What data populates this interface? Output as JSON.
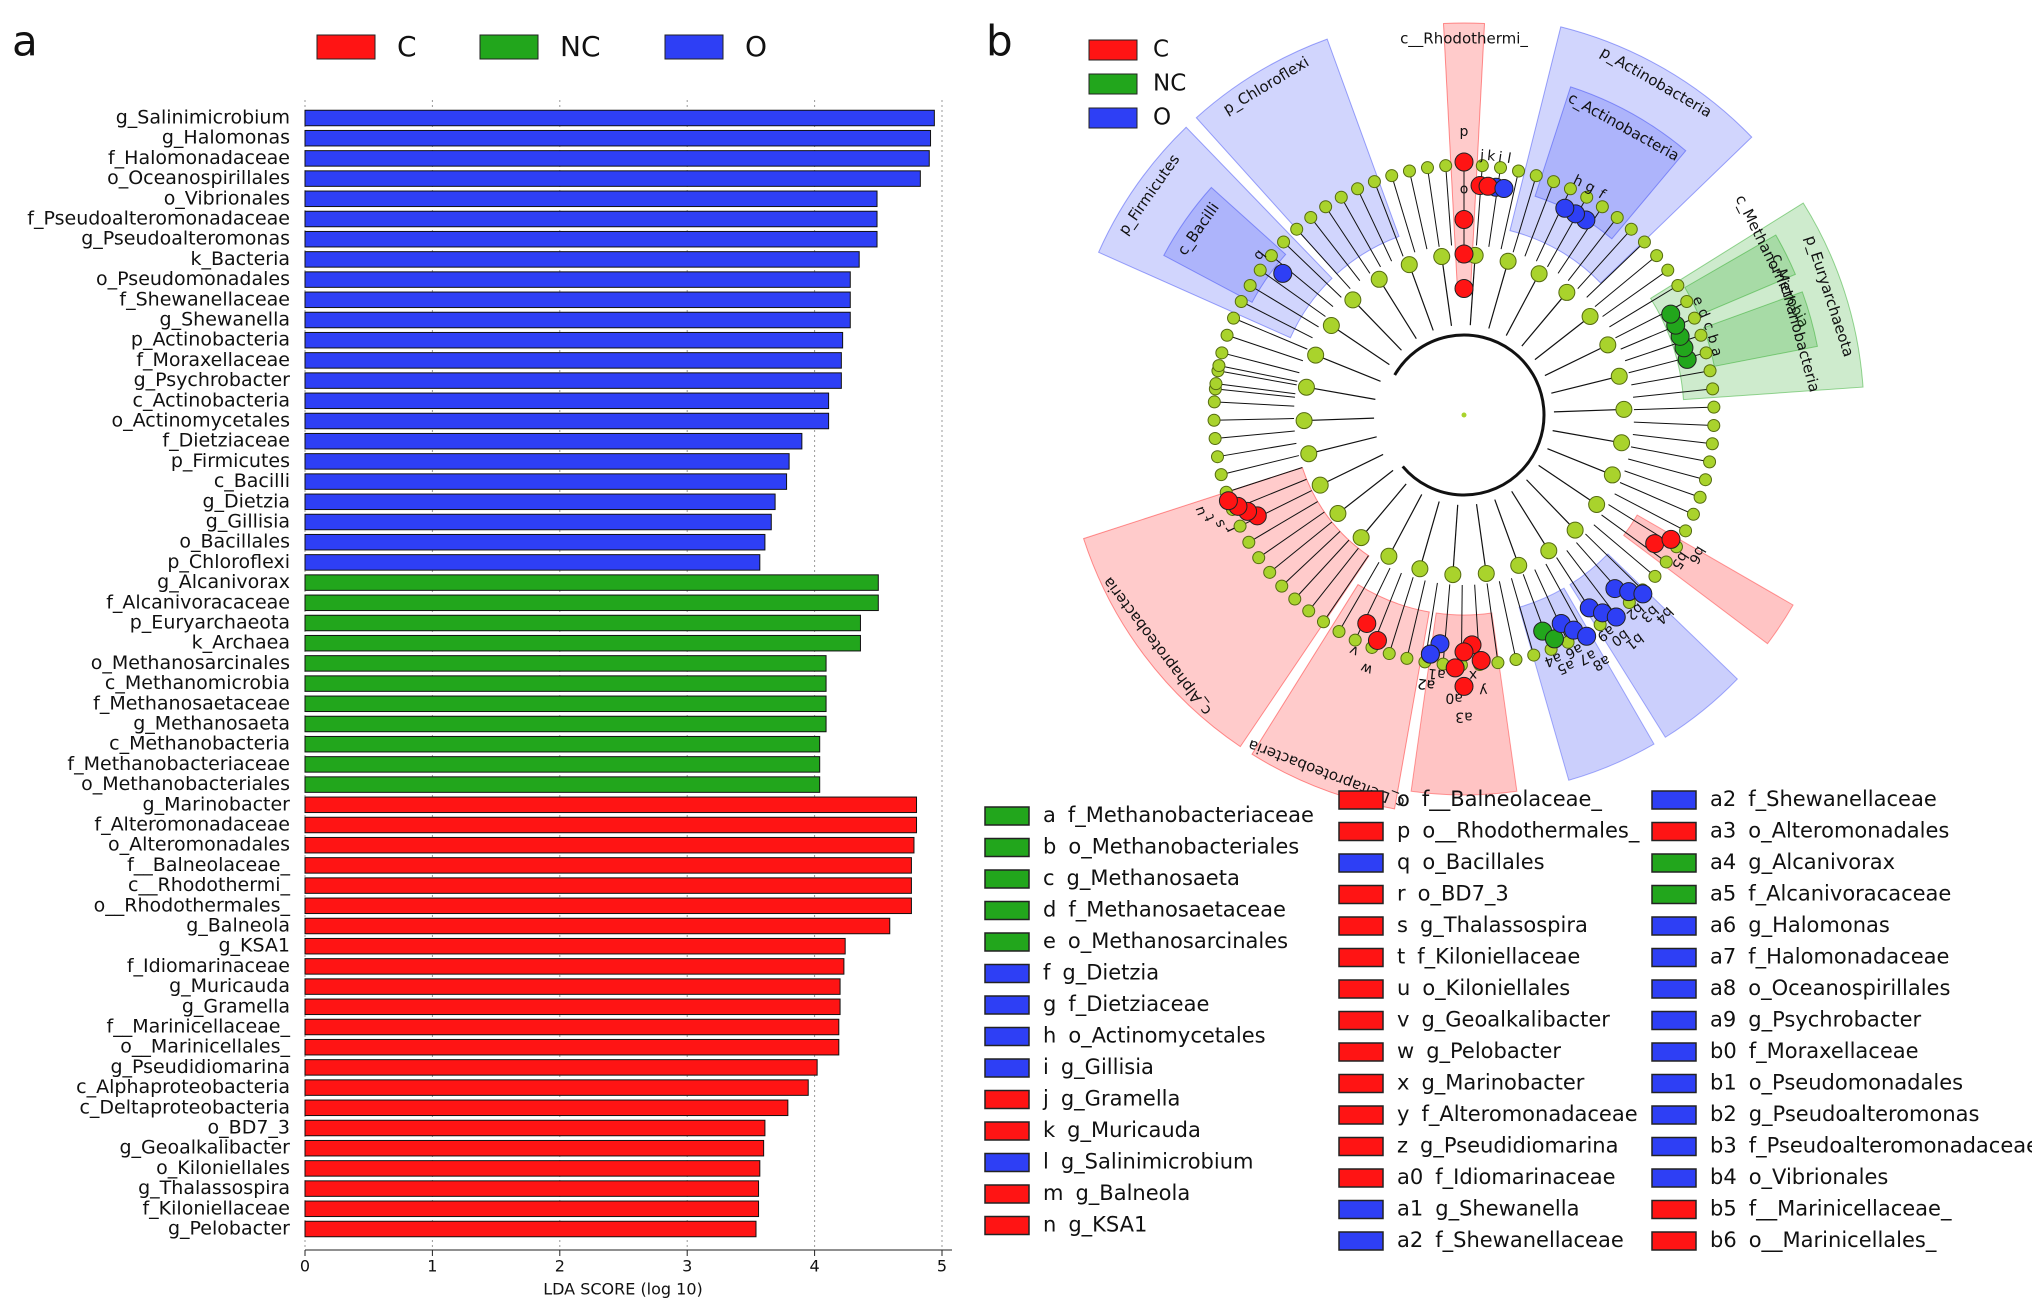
{
  "chart_data": [
    {
      "type": "bar",
      "orientation": "horizontal",
      "panel_label": "a",
      "xlabel": "LDA SCORE (log 10)",
      "xlim": [
        0,
        5
      ],
      "xticks": [
        0,
        1,
        2,
        3,
        4,
        5
      ],
      "grid": true,
      "legend_position": "top",
      "series": [
        {
          "name": "C",
          "color": "#ff1414",
          "categories": [
            "g_Marinobacter",
            "f_Alteromonadaceae",
            "o_Alteromonadales",
            "f__Balneolaceae_",
            "c__Rhodothermi_",
            "o__Rhodothermales_",
            "g_Balneola",
            "g_KSA1",
            "f_Idiomarinaceae",
            "g_Muricauda",
            "g_Gramella",
            "f__Marinicellaceae_",
            "o__Marinicellales_",
            "g_Pseudidiomarina",
            "c_Alphaproteobacteria",
            "c_Deltaproteobacteria",
            "o_BD7_3",
            "g_Geoalkalibacter",
            "o_Kiloniellales",
            "g_Thalassospira",
            "f_Kiloniellaceae",
            "g_Pelobacter"
          ],
          "values": [
            4.8,
            4.8,
            4.78,
            4.76,
            4.76,
            4.76,
            4.59,
            4.24,
            4.23,
            4.2,
            4.2,
            4.19,
            4.19,
            4.02,
            3.95,
            3.79,
            3.61,
            3.6,
            3.57,
            3.56,
            3.56,
            3.54
          ]
        },
        {
          "name": "NC",
          "color": "#22a61c",
          "categories": [
            "g_Alcanivorax",
            "f_Alcanivoracaceae",
            "p_Euryarchaeota",
            "k_Archaea",
            "o_Methanosarcinales",
            "c_Methanomicrobia",
            "f_Methanosaetaceae",
            "g_Methanosaeta",
            "c_Methanobacteria",
            "f_Methanobacteriaceae",
            "o_Methanobacteriales"
          ],
          "values": [
            4.5,
            4.5,
            4.36,
            4.36,
            4.09,
            4.09,
            4.09,
            4.09,
            4.04,
            4.04,
            4.04
          ]
        },
        {
          "name": "O",
          "color": "#2e3ff5",
          "categories": [
            "g_Salinimicrobium",
            "g_Halomonas",
            "f_Halomonadaceae",
            "o_Oceanospirillales",
            "o_Vibrionales",
            "f_Pseudoalteromonadaceae",
            "g_Pseudoalteromonas",
            "k_Bacteria",
            "o_Pseudomonadales",
            "f_Shewanellaceae",
            "g_Shewanella",
            "p_Actinobacteria",
            "f_Moraxellaceae",
            "g_Psychrobacter",
            "c_Actinobacteria",
            "o_Actinomycetales",
            "f_Dietziaceae",
            "p_Firmicutes",
            "c_Bacilli",
            "g_Dietzia",
            "g_Gillisia",
            "o_Bacillales",
            "p_Chloroflexi"
          ],
          "values": [
            4.94,
            4.91,
            4.9,
            4.83,
            4.49,
            4.49,
            4.49,
            4.35,
            4.28,
            4.28,
            4.28,
            4.22,
            4.21,
            4.21,
            4.11,
            4.11,
            3.9,
            3.8,
            3.78,
            3.69,
            3.66,
            3.61,
            3.57
          ]
        }
      ]
    },
    {
      "type": "cladogram",
      "panel_label": "b",
      "legend_position": "top-left",
      "series": [
        {
          "name": "C",
          "color": "#ff1414"
        },
        {
          "name": "NC",
          "color": "#22a61c"
        },
        {
          "name": "O",
          "color": "#2e3ff5"
        }
      ],
      "clades": [
        {
          "label": "p_Firmicutes",
          "color": "#2e3ff5"
        },
        {
          "label": "c_Bacilli",
          "color": "#2e3ff5"
        },
        {
          "label": "p_Chloroflexi",
          "color": "#2e3ff5"
        },
        {
          "label": "c__Rhodothermi_",
          "color": "#ff1414"
        },
        {
          "label": "p_Actinobacteria",
          "color": "#2e3ff5"
        },
        {
          "label": "c_Actinobacteria",
          "color": "#2e3ff5"
        },
        {
          "label": "p_Euryarchaeota",
          "color": "#22a61c"
        },
        {
          "label": "c_Methanomicrobia",
          "color": "#22a61c"
        },
        {
          "label": "c_Methanobacteria",
          "color": "#22a61c"
        },
        {
          "label": "c_Alphaproteobacteria",
          "color": "#ff1414"
        },
        {
          "label": "c_Deltaproteobacteria",
          "color": "#ff1414"
        }
      ],
      "taxa": [
        {
          "key": "a",
          "label": "f_Methanobacteriaceae",
          "color": "#22a61c"
        },
        {
          "key": "b",
          "label": "o_Methanobacteriales",
          "color": "#22a61c"
        },
        {
          "key": "c",
          "label": "g_Methanosaeta",
          "color": "#22a61c"
        },
        {
          "key": "d",
          "label": "f_Methanosaetaceae",
          "color": "#22a61c"
        },
        {
          "key": "e",
          "label": "o_Methanosarcinales",
          "color": "#22a61c"
        },
        {
          "key": "f",
          "label": "g_Dietzia",
          "color": "#2e3ff5"
        },
        {
          "key": "g",
          "label": "f_Dietziaceae",
          "color": "#2e3ff5"
        },
        {
          "key": "h",
          "label": "o_Actinomycetales",
          "color": "#2e3ff5"
        },
        {
          "key": "i",
          "label": "g_Gillisia",
          "color": "#2e3ff5"
        },
        {
          "key": "j",
          "label": "g_Gramella",
          "color": "#ff1414"
        },
        {
          "key": "k",
          "label": "g_Muricauda",
          "color": "#ff1414"
        },
        {
          "key": "l",
          "label": "g_Salinimicrobium",
          "color": "#2e3ff5"
        },
        {
          "key": "m",
          "label": "g_Balneola",
          "color": "#ff1414"
        },
        {
          "key": "n",
          "label": "g_KSA1",
          "color": "#ff1414"
        },
        {
          "key": "o",
          "label": "f__Balneolaceae_",
          "color": "#ff1414"
        },
        {
          "key": "p",
          "label": "o__Rhodothermales_",
          "color": "#ff1414"
        },
        {
          "key": "q",
          "label": "o_Bacillales",
          "color": "#2e3ff5"
        },
        {
          "key": "r",
          "label": "o_BD7_3",
          "color": "#ff1414"
        },
        {
          "key": "s",
          "label": "g_Thalassospira",
          "color": "#ff1414"
        },
        {
          "key": "t",
          "label": "f_Kiloniellaceae",
          "color": "#ff1414"
        },
        {
          "key": "u",
          "label": "o_Kiloniellales",
          "color": "#ff1414"
        },
        {
          "key": "v",
          "label": "g_Geoalkalibacter",
          "color": "#ff1414"
        },
        {
          "key": "w",
          "label": "g_Pelobacter",
          "color": "#ff1414"
        },
        {
          "key": "x",
          "label": "g_Marinobacter",
          "color": "#ff1414"
        },
        {
          "key": "y",
          "label": "f_Alteromonadaceae",
          "color": "#ff1414"
        },
        {
          "key": "z",
          "label": "g_Pseudidiomarina",
          "color": "#ff1414"
        },
        {
          "key": "a0",
          "label": "f_Idiomarinaceae",
          "color": "#ff1414"
        },
        {
          "key": "a1",
          "label": "g_Shewanella",
          "color": "#2e3ff5"
        },
        {
          "key": "a2",
          "label": "f_Shewanellaceae",
          "color": "#2e3ff5"
        },
        {
          "key": "a2",
          "label": "f_Shewanellaceae",
          "color": "#2e3ff5"
        },
        {
          "key": "a3",
          "label": "o_Alteromonadales",
          "color": "#ff1414"
        },
        {
          "key": "a4",
          "label": "g_Alcanivorax",
          "color": "#22a61c"
        },
        {
          "key": "a5",
          "label": "f_Alcanivoracaceae",
          "color": "#22a61c"
        },
        {
          "key": "a6",
          "label": "g_Halomonas",
          "color": "#2e3ff5"
        },
        {
          "key": "a7",
          "label": "f_Halomonadaceae",
          "color": "#2e3ff5"
        },
        {
          "key": "a8",
          "label": "o_Oceanospirillales",
          "color": "#2e3ff5"
        },
        {
          "key": "a9",
          "label": "g_Psychrobacter",
          "color": "#2e3ff5"
        },
        {
          "key": "b0",
          "label": "f_Moraxellaceae",
          "color": "#2e3ff5"
        },
        {
          "key": "b1",
          "label": "o_Pseudomonadales",
          "color": "#2e3ff5"
        },
        {
          "key": "b2",
          "label": "g_Pseudoalteromonas",
          "color": "#2e3ff5"
        },
        {
          "key": "b3",
          "label": "f_Pseudoalteromonadaceae",
          "color": "#2e3ff5"
        },
        {
          "key": "b4",
          "label": "o_Vibrionales",
          "color": "#2e3ff5"
        },
        {
          "key": "b5",
          "label": "f__Marinicellaceae_",
          "color": "#ff1414"
        },
        {
          "key": "b6",
          "label": "o__Marinicellales_",
          "color": "#ff1414"
        }
      ]
    }
  ]
}
